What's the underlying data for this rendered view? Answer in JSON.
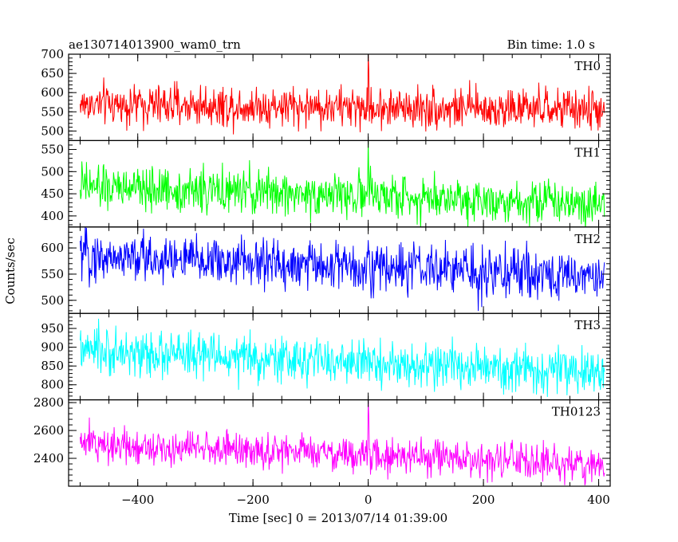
{
  "title_left": "ae130714013900_wam0_trn",
  "title_right": "Bin time: 1.0 s",
  "ylabel": "Counts/sec",
  "xlabel": "Time [sec] 0 = 2013/07/14 01:39:00",
  "chart_data": [
    {
      "type": "line",
      "name": "TH0",
      "color": "#ff0000",
      "xlim": [
        -520,
        420
      ],
      "ylim": [
        475,
        700
      ],
      "yticks": [
        500,
        550,
        600,
        650,
        700
      ],
      "x_start": -500,
      "x_end": 410,
      "bin": 1.0,
      "mean_start": 570,
      "mean_end": 555,
      "noise": 27,
      "spike": {
        "x": 0,
        "value": 700
      }
    },
    {
      "type": "line",
      "name": "TH1",
      "color": "#00ff00",
      "xlim": [
        -520,
        420
      ],
      "ylim": [
        375,
        570
      ],
      "yticks": [
        400,
        450,
        500,
        550
      ],
      "x_start": -500,
      "x_end": 410,
      "bin": 1.0,
      "mean_start": 465,
      "mean_end": 430,
      "noise": 25,
      "spike": {
        "x": 0,
        "value": 570
      }
    },
    {
      "type": "line",
      "name": "TH2",
      "color": "#0000ff",
      "xlim": [
        -520,
        420
      ],
      "ylim": [
        475,
        640
      ],
      "yticks": [
        500,
        550,
        600
      ],
      "x_start": -500,
      "x_end": 410,
      "bin": 1.0,
      "mean_start": 585,
      "mean_end": 545,
      "noise": 24,
      "spike": {
        "x": 0,
        "value": 615
      }
    },
    {
      "type": "line",
      "name": "TH3",
      "color": "#00ffff",
      "xlim": [
        -520,
        420
      ],
      "ylim": [
        760,
        990
      ],
      "yticks": [
        800,
        850,
        900,
        950
      ],
      "x_start": -500,
      "x_end": 410,
      "bin": 1.0,
      "mean_start": 890,
      "mean_end": 830,
      "noise": 30,
      "spike": {
        "x": 0,
        "value": 900
      }
    },
    {
      "type": "line",
      "name": "TH0123",
      "color": "#ff00ff",
      "xlim": [
        -520,
        420
      ],
      "ylim": [
        2200,
        2820
      ],
      "yticks": [
        2400,
        2600,
        2800
      ],
      "ytick_labels": [
        "2400",
        "2600",
        "2800"
      ],
      "x_start": -500,
      "x_end": 410,
      "bin": 1.0,
      "mean_start": 2510,
      "mean_end": 2350,
      "noise": 65,
      "spike": {
        "x": 0,
        "value": 2820
      }
    }
  ],
  "xaxis": {
    "ticks": [
      -400,
      -200,
      0,
      200,
      400
    ],
    "tick_labels": [
      "−400",
      "−200",
      "0",
      "200",
      "400"
    ],
    "minor_step": 50
  }
}
